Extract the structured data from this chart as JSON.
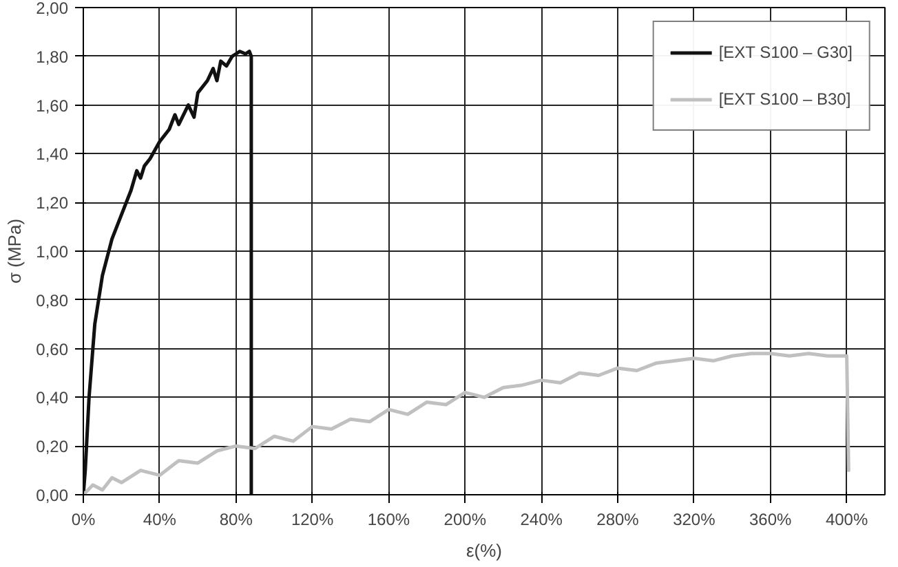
{
  "chart_data": {
    "type": "line",
    "xlabel": "ε(%)",
    "ylabel": "σ (MPa)",
    "xlim": [
      0,
      420
    ],
    "ylim": [
      0,
      2
    ],
    "xticks": [
      {
        "value": 0,
        "label": "0%"
      },
      {
        "value": 40,
        "label": "40%"
      },
      {
        "value": 80,
        "label": "80%"
      },
      {
        "value": 120,
        "label": "120%"
      },
      {
        "value": 160,
        "label": "160%"
      },
      {
        "value": 200,
        "label": "200%"
      },
      {
        "value": 240,
        "label": "240%"
      },
      {
        "value": 280,
        "label": "280%"
      },
      {
        "value": 320,
        "label": "320%"
      },
      {
        "value": 360,
        "label": "360%"
      },
      {
        "value": 400,
        "label": "400%"
      }
    ],
    "yticks": [
      {
        "value": 0,
        "label": "0,00"
      },
      {
        "value": 0.2,
        "label": "0,20"
      },
      {
        "value": 0.4,
        "label": "0,40"
      },
      {
        "value": 0.6,
        "label": "0,60"
      },
      {
        "value": 0.8,
        "label": "0,80"
      },
      {
        "value": 1.0,
        "label": "1,00"
      },
      {
        "value": 1.2,
        "label": "1,20"
      },
      {
        "value": 1.4,
        "label": "1,40"
      },
      {
        "value": 1.6,
        "label": "1,60"
      },
      {
        "value": 1.8,
        "label": "1,80"
      },
      {
        "value": 2.0,
        "label": "2,00"
      }
    ],
    "grid": true,
    "legend": "top right",
    "marker": "none",
    "line_style": "solid",
    "series": [
      {
        "name": "[EXT S100 – G30]",
        "color": "#111111",
        "x": [
          0,
          1,
          3,
          6,
          10,
          15,
          20,
          25,
          28,
          30,
          32,
          35,
          40,
          45,
          48,
          50,
          55,
          58,
          60,
          65,
          68,
          70,
          72,
          75,
          78,
          80,
          82,
          85,
          87,
          88,
          88
        ],
        "values": [
          0,
          0.1,
          0.4,
          0.7,
          0.9,
          1.05,
          1.15,
          1.25,
          1.33,
          1.3,
          1.35,
          1.38,
          1.45,
          1.5,
          1.56,
          1.52,
          1.6,
          1.55,
          1.65,
          1.7,
          1.75,
          1.7,
          1.78,
          1.76,
          1.8,
          1.81,
          1.82,
          1.81,
          1.82,
          1.8,
          0
        ]
      },
      {
        "name": "[EXT S100 – B30]",
        "color": "#c0c0c0",
        "x": [
          0,
          5,
          10,
          15,
          20,
          30,
          40,
          50,
          60,
          70,
          80,
          90,
          100,
          110,
          120,
          130,
          140,
          150,
          160,
          170,
          180,
          190,
          200,
          210,
          220,
          230,
          240,
          250,
          260,
          270,
          280,
          290,
          300,
          310,
          320,
          330,
          340,
          350,
          360,
          370,
          380,
          390,
          400,
          401
        ],
        "values": [
          0,
          0.04,
          0.02,
          0.07,
          0.05,
          0.1,
          0.08,
          0.14,
          0.13,
          0.18,
          0.2,
          0.19,
          0.24,
          0.22,
          0.28,
          0.27,
          0.31,
          0.3,
          0.35,
          0.33,
          0.38,
          0.37,
          0.42,
          0.4,
          0.44,
          0.45,
          0.47,
          0.46,
          0.5,
          0.49,
          0.52,
          0.51,
          0.54,
          0.55,
          0.56,
          0.55,
          0.57,
          0.58,
          0.58,
          0.57,
          0.58,
          0.57,
          0.57,
          0.1
        ]
      }
    ]
  }
}
